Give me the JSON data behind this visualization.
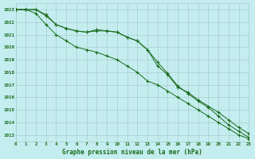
{
  "title": "Graphe pression niveau de la mer (hPa)",
  "background_color": "#c4edf0",
  "grid_color": "#a8cccc",
  "line_color": "#1a6b1a",
  "xlim": [
    0,
    23
  ],
  "ylim": [
    1012.5,
    1023.5
  ],
  "yticks": [
    1013,
    1014,
    1015,
    1016,
    1017,
    1018,
    1019,
    1020,
    1021,
    1022,
    1023
  ],
  "xticks": [
    0,
    1,
    2,
    3,
    4,
    5,
    6,
    7,
    8,
    9,
    10,
    11,
    12,
    13,
    14,
    15,
    16,
    17,
    18,
    19,
    20,
    21,
    22,
    23
  ],
  "series1": [
    1023.0,
    1023.0,
    1023.0,
    1022.5,
    1021.8,
    1021.5,
    1021.3,
    1021.2,
    1021.4,
    1021.3,
    1021.2,
    1020.8,
    1020.5,
    1019.8,
    1018.5,
    1017.8,
    1016.8,
    1016.4,
    1015.8,
    1015.3,
    1014.8,
    1014.2,
    1013.6,
    1013.1
  ],
  "series2": [
    1023.0,
    1023.0,
    1022.7,
    1021.8,
    1021.0,
    1020.5,
    1020.0,
    1019.8,
    1019.6,
    1019.3,
    1019.0,
    1018.5,
    1018.0,
    1017.3,
    1017.0,
    1016.5,
    1016.0,
    1015.5,
    1015.0,
    1014.5,
    1014.0,
    1013.5,
    1013.0,
    1012.7
  ],
  "series3": [
    1023.0,
    1023.0,
    1023.0,
    1022.6,
    1021.8,
    1021.5,
    1021.3,
    1021.2,
    1021.3,
    1021.3,
    1021.2,
    1020.8,
    1020.5,
    1019.8,
    1018.8,
    1017.9,
    1016.9,
    1016.3,
    1015.7,
    1015.2,
    1014.5,
    1013.8,
    1013.3,
    1012.8
  ]
}
